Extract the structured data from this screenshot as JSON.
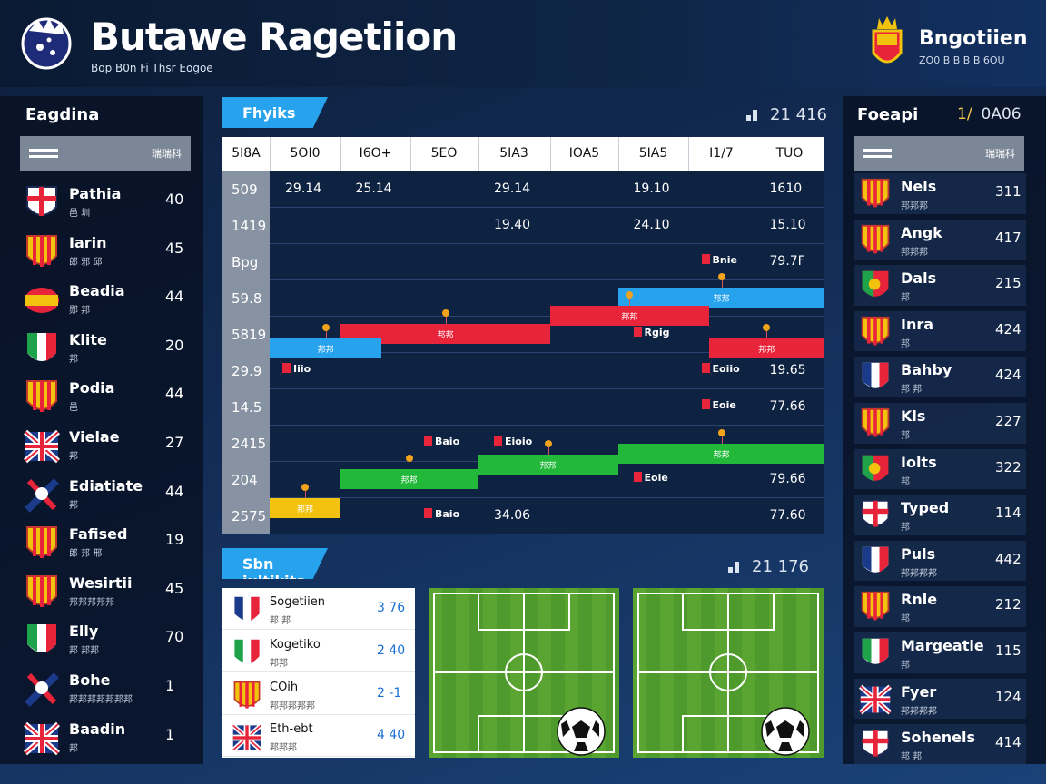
{
  "header": {
    "title": "Butawe Ragetiion",
    "subtitle": "Bop B0n Fi Thsr Eogoe",
    "brand_title": "Bngotiien",
    "brand_sub": "ZO0 B B B B 6OU"
  },
  "left_panel": {
    "title": "Eagdina",
    "toolbar_label": "瑞瑞科",
    "teams": [
      {
        "name": "Pathia",
        "sub": "邑 圳",
        "score": "40",
        "flag": "england-shield"
      },
      {
        "name": "Iarin",
        "sub": "郎 邪 邱",
        "score": "45",
        "flag": "spain-crest"
      },
      {
        "name": "Beadia",
        "sub": "郧 邦",
        "score": "44",
        "flag": "spain-oval"
      },
      {
        "name": "Klite",
        "sub": "邦",
        "score": "20",
        "flag": "italy-shield"
      },
      {
        "name": "Podia",
        "sub": "邑",
        "score": "44",
        "flag": "spain-shield"
      },
      {
        "name": "Vielae",
        "sub": "邦",
        "score": "27",
        "flag": "uk-flag"
      },
      {
        "name": "Ediatiate",
        "sub": "邦",
        "score": "44",
        "flag": "scotland-mascot"
      },
      {
        "name": "Fafised",
        "sub": "郎 邦 邢",
        "score": "19",
        "flag": "spain-badge"
      },
      {
        "name": "Wesirtii",
        "sub": "邦邦邦邦邦",
        "score": "45",
        "flag": "spain-dragon"
      },
      {
        "name": "Elly",
        "sub": "邦 邦邦",
        "score": "70",
        "flag": "italy-eagle"
      },
      {
        "name": "Bohe",
        "sub": "邦邦邦邦邦邦邦",
        "score": "1",
        "flag": "france-mascot"
      },
      {
        "name": "Baadin",
        "sub": "邦",
        "score": "1",
        "flag": "uk-flag"
      }
    ]
  },
  "right_panel": {
    "title": "Foeapi",
    "stat_highlight": "1/",
    "stat_value": "0A06",
    "toolbar_label": "瑞瑞科",
    "teams": [
      {
        "name": "Nels",
        "sub": "邦邦邦",
        "score": "311",
        "flag": "spain-shield"
      },
      {
        "name": "Angk",
        "sub": "邦邦邦",
        "score": "417",
        "flag": "spain-crest"
      },
      {
        "name": "Dals",
        "sub": "邦",
        "score": "215",
        "flag": "portugal-shield"
      },
      {
        "name": "Inra",
        "sub": "邦",
        "score": "424",
        "flag": "spain-shield"
      },
      {
        "name": "Bahby",
        "sub": "邦 邦",
        "score": "424",
        "flag": "france-crest"
      },
      {
        "name": "Kls",
        "sub": "邦",
        "score": "227",
        "flag": "spain-shield"
      },
      {
        "name": "Iolts",
        "sub": "邦",
        "score": "322",
        "flag": "portugal-shield"
      },
      {
        "name": "Typed",
        "sub": "邦",
        "score": "114",
        "flag": "england-crest"
      },
      {
        "name": "Puls",
        "sub": "邦邦邦邦",
        "score": "442",
        "flag": "france-shield"
      },
      {
        "name": "Rnle",
        "sub": "邦",
        "score": "212",
        "flag": "spain-mascot"
      },
      {
        "name": "Margeatie",
        "sub": "邦",
        "score": "115",
        "flag": "italy-flag"
      },
      {
        "name": "Fyer",
        "sub": "邦邦邦邦",
        "score": "124",
        "flag": "uk-flag"
      },
      {
        "name": "Sohenels",
        "sub": "邦 邦",
        "score": "414",
        "flag": "england-shield"
      }
    ]
  },
  "schedule": {
    "tab_label": "Fhyiks",
    "counter": "21 416",
    "columns": [
      "5I8A",
      "5OI0",
      "I6O+",
      "5EO",
      "5IA3",
      "IOA5",
      "5IA5",
      "I1/7",
      "TUO"
    ],
    "row_labels": [
      "509",
      "1419",
      "Bpg",
      "59.8",
      "5819",
      "29.9",
      "14.5",
      "2415",
      "204",
      "2575"
    ],
    "values": [
      {
        "row": 0,
        "col": 1,
        "text": "29.14"
      },
      {
        "row": 0,
        "col": 2,
        "text": "25.14"
      },
      {
        "row": 0,
        "col": 4,
        "text": "29.14"
      },
      {
        "row": 0,
        "col": 6,
        "text": "19.10"
      },
      {
        "row": 0,
        "col": 8,
        "text": "1610"
      },
      {
        "row": 1,
        "col": 4,
        "text": "19.40"
      },
      {
        "row": 1,
        "col": 6,
        "text": "24.10"
      },
      {
        "row": 1,
        "col": 8,
        "text": "15.10"
      },
      {
        "row": 2,
        "col": 8,
        "text": "79.7F"
      },
      {
        "row": 5,
        "col": 8,
        "text": "19.65"
      },
      {
        "row": 6,
        "col": 8,
        "text": "77.66"
      },
      {
        "row": 8,
        "col": 8,
        "text": "79.66"
      },
      {
        "row": 9,
        "col": 4,
        "text": "34.06"
      },
      {
        "row": 9,
        "col": 8,
        "text": "77.60"
      }
    ],
    "tags": [
      {
        "row": 2,
        "col": 7,
        "text": "Bnie"
      },
      {
        "row": 4,
        "col": 6,
        "text": "Rgig"
      },
      {
        "row": 5,
        "col": 1,
        "text": "Iiio"
      },
      {
        "row": 5,
        "col": 7,
        "text": "Eoiio"
      },
      {
        "row": 6,
        "col": 7,
        "text": "Eoie"
      },
      {
        "row": 7,
        "col": 3,
        "text": "Baio"
      },
      {
        "row": 7,
        "col": 4,
        "text": "Eioio"
      },
      {
        "row": 8,
        "col": 6,
        "text": "Eoie"
      },
      {
        "row": 9,
        "col": 3,
        "text": "Baio"
      }
    ],
    "bars": [
      {
        "row": 3,
        "start": 6,
        "end": 9,
        "color": "#27a3ee",
        "label": "邦邦"
      },
      {
        "row": 4,
        "start": 2,
        "end": 5,
        "color": "#e8243a",
        "label": "邦邦"
      },
      {
        "row": 3.5,
        "start": 5,
        "end": 7.3,
        "color": "#e8243a",
        "label": "邦邦"
      },
      {
        "row": 4.4,
        "start": 0,
        "end": 2.6,
        "color": "#27a3ee",
        "label": "邦邦"
      },
      {
        "row": 4.4,
        "start": 7.3,
        "end": 9,
        "color": "#e8243a",
        "label": "邦邦"
      },
      {
        "row": 7.3,
        "start": 6,
        "end": 9,
        "color": "#22b83a",
        "label": "邦邦"
      },
      {
        "row": 7.6,
        "start": 4,
        "end": 6,
        "color": "#22b83a",
        "label": "邦邦"
      },
      {
        "row": 8,
        "start": 2,
        "end": 4,
        "color": "#22b83a",
        "label": "邦邦"
      },
      {
        "row": 8.8,
        "start": 0,
        "end": 2,
        "color": "#f2c20e",
        "label": "邦邦"
      }
    ],
    "colors": {
      "blue": "#27a3ee",
      "red": "#e8243a",
      "green": "#22b83a",
      "yellow": "#f2c20e"
    }
  },
  "bottom": {
    "tab_label": "Sbn jultikits",
    "counter": "21 176",
    "results": [
      {
        "name": "Sogetiien",
        "sub": "邦 邦",
        "score": "3 76",
        "flag": "france-flag"
      },
      {
        "name": "Kogetiko",
        "sub": "邦邦",
        "score": "2 40",
        "flag": "italy-flag"
      },
      {
        "name": "COih",
        "sub": "邦邦邦邦邦",
        "score": "2 -1",
        "flag": "spain-shield"
      },
      {
        "name": "Eth-ebt",
        "sub": "邦邦邦",
        "score": "4 40",
        "flag": "uk-badge"
      }
    ]
  }
}
